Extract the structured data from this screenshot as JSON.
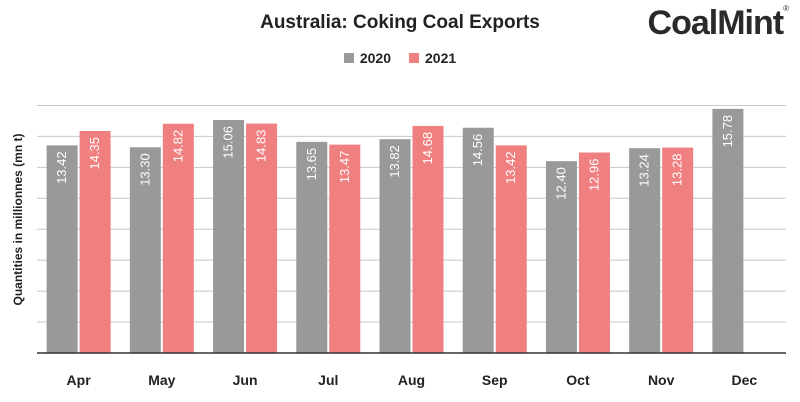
{
  "logo": {
    "text": "CoalMint",
    "mark": "®"
  },
  "colors": {
    "series_2020": "#999999",
    "series_2021": "#f08080",
    "grid": "#c8c8c8",
    "axis": "#333333"
  },
  "chart_data": {
    "type": "bar",
    "title": "Australia: Coking Coal Exports",
    "ylabel": "Quantities in millionnes (mn t)",
    "xlabel": "",
    "ylim": [
      0,
      17
    ],
    "grid": true,
    "legend_position": "top-center",
    "categories": [
      "Apr",
      "May",
      "Jun",
      "Jul",
      "Aug",
      "Sep",
      "Oct",
      "Nov",
      "Dec"
    ],
    "series": [
      {
        "name": "2020",
        "values": [
          13.42,
          13.3,
          15.06,
          13.65,
          13.82,
          14.56,
          12.4,
          13.24,
          15.78
        ],
        "labels": [
          "13.42",
          "13.30",
          "15.06",
          "13.65",
          "13.82",
          "14.56",
          "12.40",
          "13.24",
          "15.78"
        ]
      },
      {
        "name": "2021",
        "values": [
          14.35,
          14.82,
          14.83,
          13.47,
          14.68,
          13.42,
          12.96,
          13.28,
          null
        ],
        "labels": [
          "14.35",
          "14.82",
          "14.83",
          "13.47",
          "14.68",
          "13.42",
          "12.96",
          "13.28",
          null
        ]
      }
    ]
  }
}
